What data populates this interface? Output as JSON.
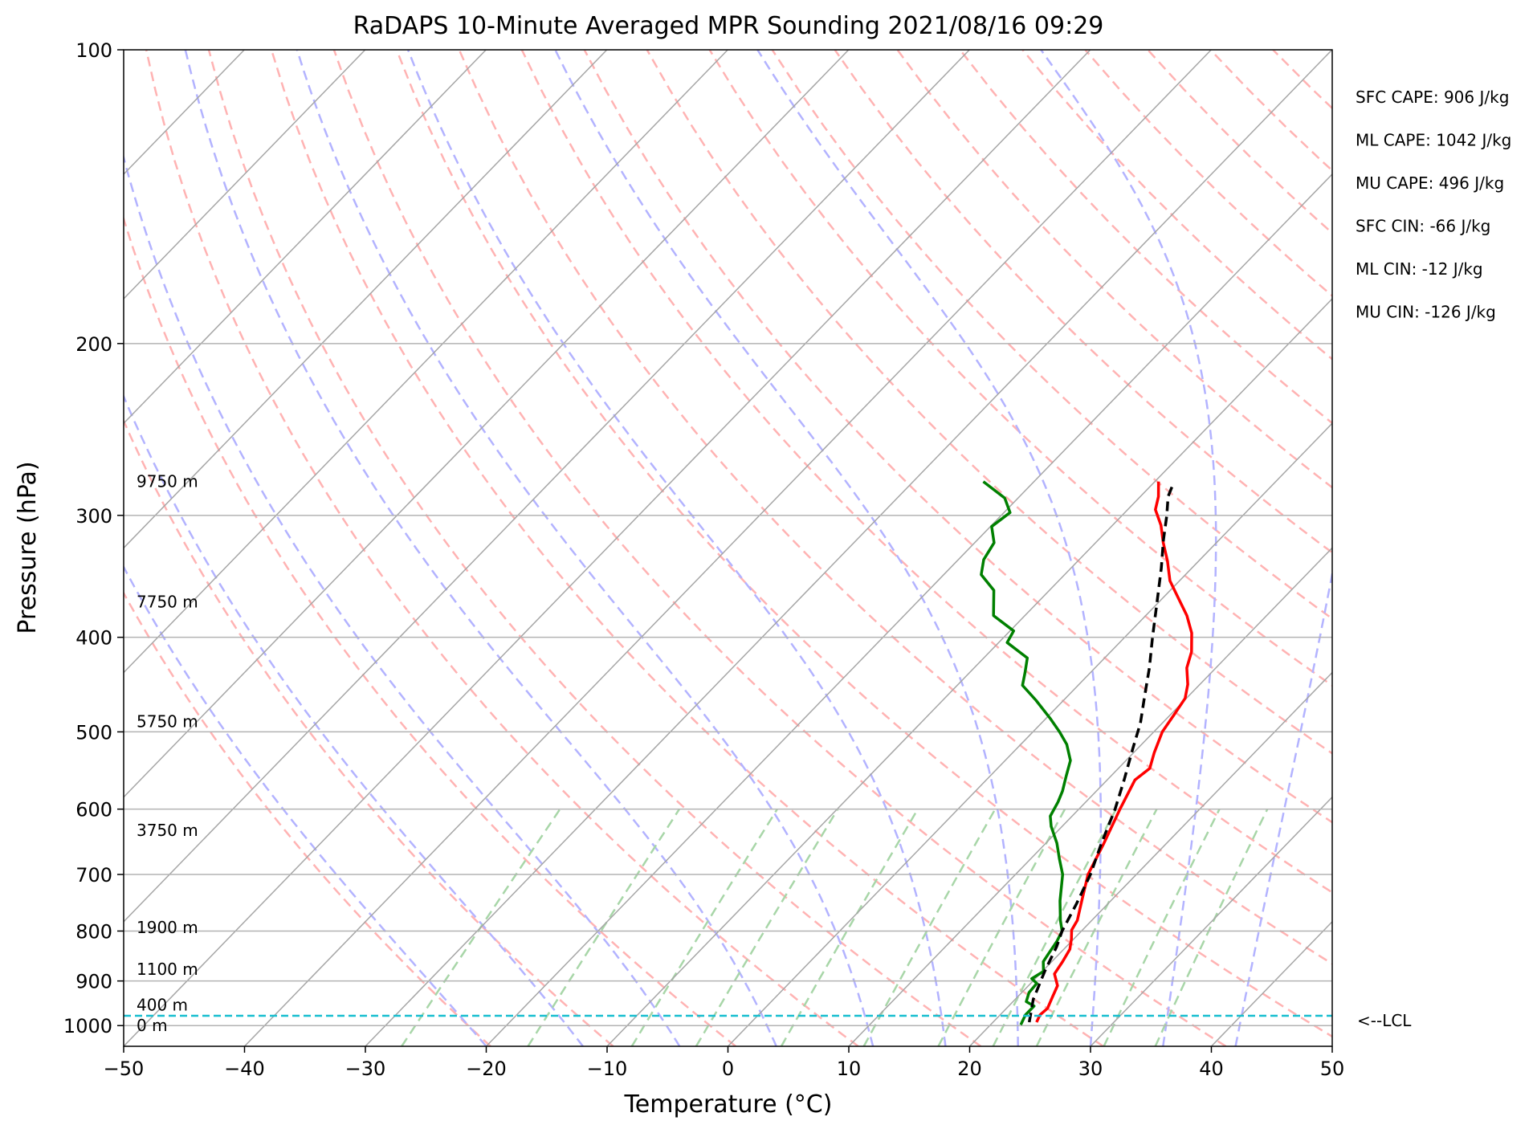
{
  "chart_data": {
    "type": "line",
    "title": "RaDAPS 10-Minute Averaged MPR Sounding 2021/08/16 09:29",
    "xlabel": "Temperature (°C)",
    "ylabel": "Pressure (hPa)",
    "xlim": [
      -50,
      50
    ],
    "ylim": [
      1050,
      100
    ],
    "y_scale": "log",
    "skew": "skew-T log-p",
    "grid": true,
    "x_ticks": [
      -50,
      -40,
      -30,
      -20,
      -10,
      0,
      10,
      20,
      30,
      40,
      50
    ],
    "x_tick_labels": [
      "−50",
      "−40",
      "−30",
      "−20",
      "−10",
      "0",
      "10",
      "20",
      "30",
      "40",
      "50"
    ],
    "y_ticks": [
      100,
      200,
      300,
      400,
      500,
      600,
      700,
      800,
      900,
      1000
    ],
    "y_tick_labels": [
      "100",
      "200",
      "300",
      "400",
      "500",
      "600",
      "700",
      "800",
      "900",
      "1000"
    ],
    "series": [
      {
        "color": "#ff0000",
        "style": "solid",
        "points": [
          [
            23.6,
            992
          ],
          [
            23.3,
            975
          ],
          [
            23.4,
            960
          ],
          [
            22.9,
            935
          ],
          [
            22.4,
            910
          ],
          [
            21.2,
            885
          ],
          [
            20.9,
            860
          ],
          [
            20.5,
            835
          ],
          [
            19.8,
            815
          ],
          [
            19.1,
            798
          ],
          [
            18.8,
            780
          ],
          [
            17.6,
            745
          ],
          [
            16.0,
            700
          ],
          [
            14.8,
            650
          ],
          [
            13.4,
            600
          ],
          [
            12.3,
            560
          ],
          [
            12.6,
            545
          ],
          [
            11.7,
            525
          ],
          [
            10.7,
            500
          ],
          [
            10.3,
            480
          ],
          [
            9.9,
            462
          ],
          [
            9.0,
            447
          ],
          [
            7.6,
            430
          ],
          [
            6.7,
            414
          ],
          [
            5.2,
            396
          ],
          [
            3.4,
            380
          ],
          [
            1.2,
            364
          ],
          [
            -0.8,
            350
          ],
          [
            -2.6,
            334
          ],
          [
            -4.4,
            320
          ],
          [
            -6.0,
            307
          ],
          [
            -7.7,
            296
          ],
          [
            -8.5,
            287
          ],
          [
            -9.7,
            277
          ]
        ]
      },
      {
        "color": "#008000",
        "style": "solid",
        "points": [
          [
            22.5,
            998
          ],
          [
            22.1,
            975
          ],
          [
            22.1,
            955
          ],
          [
            21.1,
            945
          ],
          [
            20.6,
            925
          ],
          [
            20.5,
            905
          ],
          [
            19.7,
            895
          ],
          [
            20.1,
            880
          ],
          [
            19.3,
            860
          ],
          [
            19.1,
            845
          ],
          [
            18.8,
            820
          ],
          [
            18.4,
            800
          ],
          [
            17.4,
            780
          ],
          [
            15.8,
            745
          ],
          [
            13.9,
            700
          ],
          [
            12.4,
            675
          ],
          [
            10.9,
            650
          ],
          [
            9.1,
            625
          ],
          [
            8.2,
            610
          ],
          [
            7.7,
            590
          ],
          [
            7.2,
            575
          ],
          [
            6.3,
            555
          ],
          [
            5.4,
            535
          ],
          [
            3.8,
            515
          ],
          [
            2.2,
            500
          ],
          [
            0.3,
            484
          ],
          [
            -2.3,
            464
          ],
          [
            -4.6,
            448
          ],
          [
            -5.4,
            435
          ],
          [
            -6.4,
            420
          ],
          [
            -9.3,
            405
          ],
          [
            -9.7,
            394
          ],
          [
            -12.6,
            380
          ],
          [
            -14.6,
            358
          ],
          [
            -16.9,
            345
          ],
          [
            -17.9,
            333
          ],
          [
            -18.4,
            320
          ],
          [
            -19.9,
            308
          ],
          [
            -19.5,
            298
          ],
          [
            -21.1,
            288
          ],
          [
            -24.2,
            277
          ]
        ]
      },
      {
        "color": "#000000",
        "style": "dashed",
        "points": [
          [
            23.0,
            992
          ],
          [
            21.5,
            940
          ],
          [
            20.2,
            880
          ],
          [
            19.2,
            830
          ],
          [
            18.4,
            800
          ],
          [
            17.4,
            750
          ],
          [
            16.2,
            700
          ],
          [
            14.6,
            650
          ],
          [
            13.0,
            600
          ],
          [
            11.4,
            560
          ],
          [
            9.6,
            520
          ],
          [
            8.2,
            490
          ],
          [
            6.4,
            460
          ],
          [
            4.5,
            430
          ],
          [
            2.3,
            400
          ],
          [
            0.0,
            370
          ],
          [
            -2.5,
            340
          ],
          [
            -4.6,
            318
          ],
          [
            -6.3,
            300
          ],
          [
            -7.7,
            287
          ],
          [
            -8.2,
            280
          ]
        ]
      }
    ],
    "annotations": {
      "height_labels": [
        {
          "label": "9750 m",
          "p": 277
        },
        {
          "label": "7750 m",
          "p": 368
        },
        {
          "label": "5750 m",
          "p": 488
        },
        {
          "label": "3750 m",
          "p": 631
        },
        {
          "label": "1900 m",
          "p": 793
        },
        {
          "label": "1100 m",
          "p": 875
        },
        {
          "label": "400 m",
          "p": 952
        },
        {
          "label": "0 m",
          "p": 1000
        }
      ],
      "lcl": {
        "label": "<--LCL",
        "p": 977
      },
      "stats": [
        "SFC CAPE: 906 J/kg",
        "ML CAPE: 1042 J/kg",
        "MU CAPE: 496 J/kg",
        "SFC CIN: -66 J/kg",
        "ML CIN: -12 J/kg",
        "MU CIN: -126 J/kg"
      ]
    },
    "colors": {
      "isotherm": "#a6a6a6",
      "dry_adiabat": "#ffb3b3",
      "moist_adiabat": "#b3b3ff",
      "mixing_ratio": "#a8d6a8",
      "lcl_line": "#17becf",
      "isobar": "#b3b3b3"
    }
  }
}
